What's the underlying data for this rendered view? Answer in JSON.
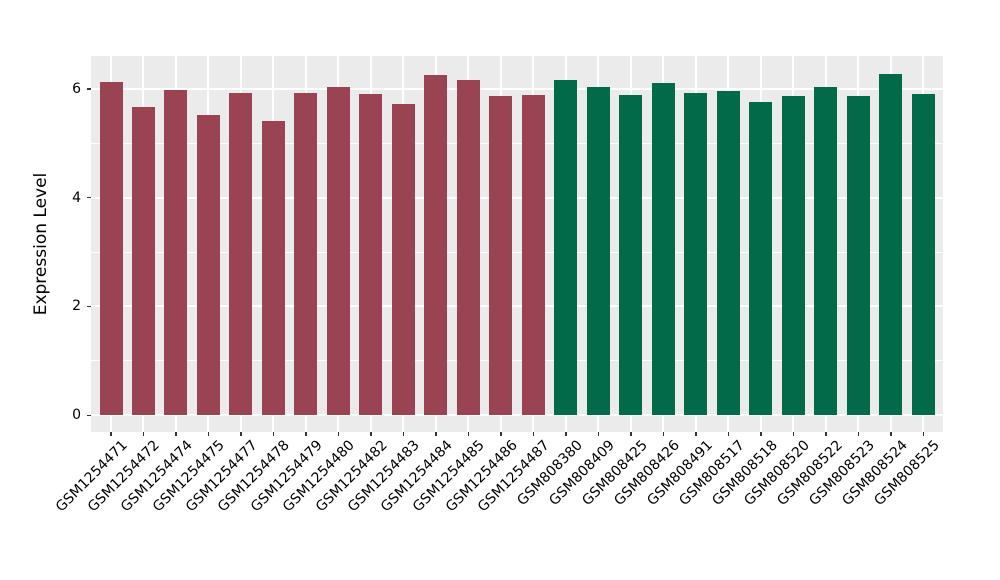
{
  "figure": {
    "background": "#ffffff",
    "panel_background": "#ebebeb",
    "grid_color": "#ffffff",
    "tick_color": "#333333",
    "text_color": "#000000"
  },
  "chart_data": {
    "type": "bar",
    "title": "",
    "xlabel": "",
    "ylabel": "Expression Level",
    "ylim": [
      0,
      6.58
    ],
    "yticks": [
      0,
      2,
      4,
      6
    ],
    "yticks_minor": [
      1,
      3,
      5
    ],
    "grid": "on",
    "legend": "none",
    "bar_width_frac": 0.7,
    "group_colors": {
      "gsm1254_group": "#9a4453",
      "gsm808_group": "#006a49"
    },
    "categories": [
      "GSM1254471",
      "GSM1254472",
      "GSM1254474",
      "GSM1254475",
      "GSM1254477",
      "GSM1254478",
      "GSM1254479",
      "GSM1254480",
      "GSM1254482",
      "GSM1254483",
      "GSM1254484",
      "GSM1254485",
      "GSM1254486",
      "GSM1254487",
      "GSM808380",
      "GSM808409",
      "GSM808425",
      "GSM808426",
      "GSM808491",
      "GSM808517",
      "GSM808518",
      "GSM808520",
      "GSM808522",
      "GSM808523",
      "GSM808524",
      "GSM808525"
    ],
    "values": [
      6.13,
      5.67,
      5.98,
      5.51,
      5.93,
      5.41,
      5.93,
      6.04,
      5.9,
      5.72,
      6.25,
      6.16,
      5.87,
      5.89,
      6.17,
      6.03,
      5.89,
      6.1,
      5.92,
      5.96,
      5.76,
      5.87,
      6.03,
      5.86,
      6.27,
      5.9
    ],
    "bar_colors": [
      "#9a4453",
      "#9a4453",
      "#9a4453",
      "#9a4453",
      "#9a4453",
      "#9a4453",
      "#9a4453",
      "#9a4453",
      "#9a4453",
      "#9a4453",
      "#9a4453",
      "#9a4453",
      "#9a4453",
      "#9a4453",
      "#006a49",
      "#006a49",
      "#006a49",
      "#006a49",
      "#006a49",
      "#006a49",
      "#006a49",
      "#006a49",
      "#006a49",
      "#006a49",
      "#006a49",
      "#006a49"
    ]
  }
}
